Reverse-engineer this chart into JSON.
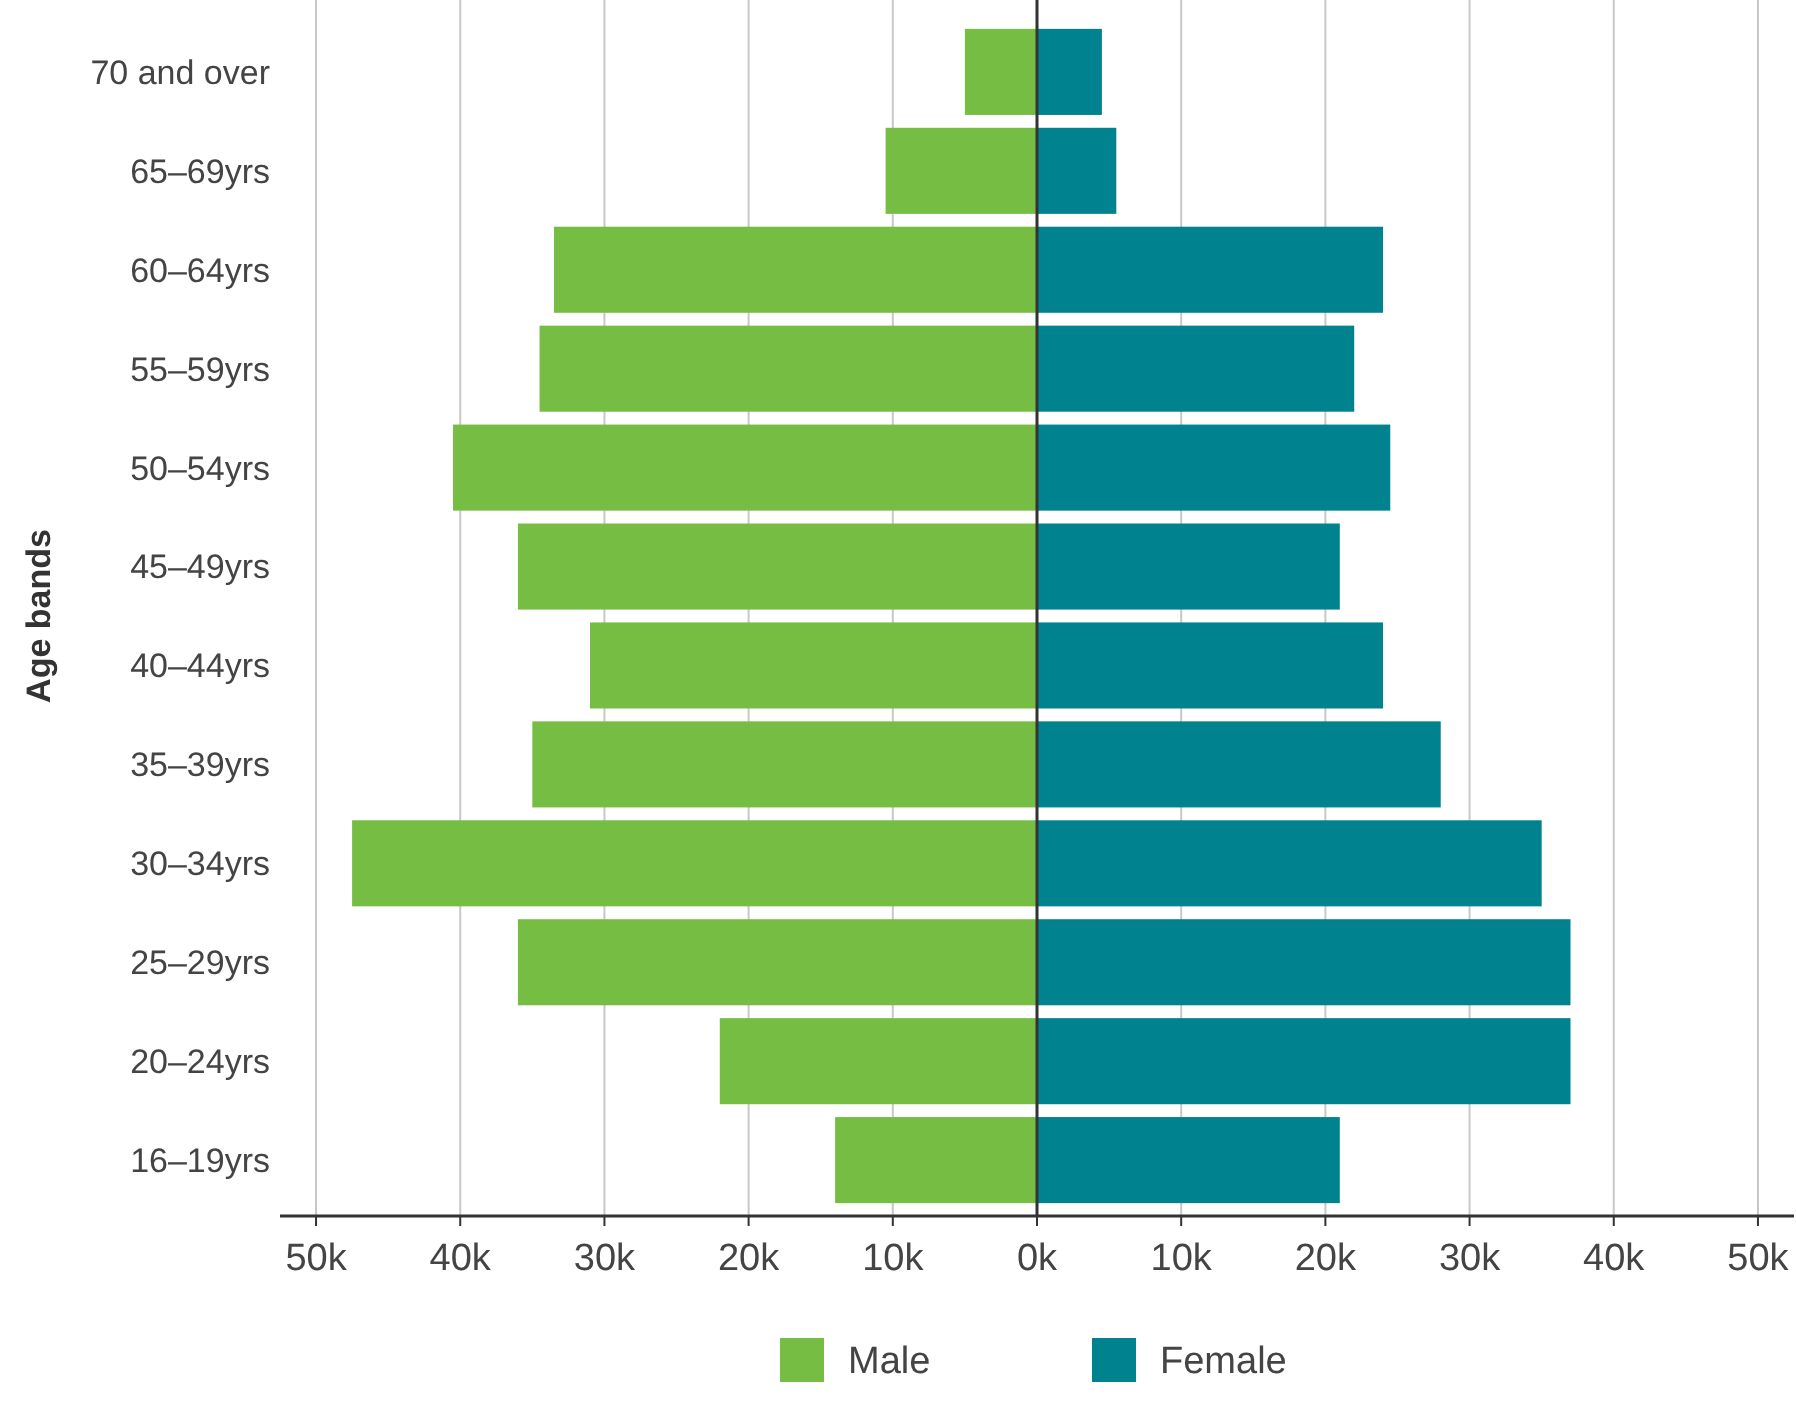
{
  "chart_data": {
    "type": "bar",
    "orientation": "horizontal",
    "stacked": true,
    "ylabel": "Age bands",
    "categories": [
      "70 and over",
      "65–69yrs",
      "60–64yrs",
      "55–59yrs",
      "50–54yrs",
      "45–49yrs",
      "40–44yrs",
      "35–39yrs",
      "30–34yrs",
      "25–29yrs",
      "20–24yrs",
      "16–19yrs"
    ],
    "series": [
      {
        "name": "Male",
        "color": "#76bd43",
        "values": [
          -5000,
          -10500,
          -33500,
          -34500,
          -40500,
          -36000,
          -31000,
          -35000,
          -47500,
          -36000,
          -22000,
          -14000
        ]
      },
      {
        "name": "Female",
        "color": "#00828f",
        "values": [
          4500,
          5500,
          24000,
          22000,
          24500,
          21000,
          24000,
          28000,
          35000,
          37000,
          37000,
          21000
        ]
      }
    ],
    "xlim": [
      -52500,
      52500
    ],
    "xticks": [
      {
        "value": -50000,
        "label": "50k"
      },
      {
        "value": -40000,
        "label": "40k"
      },
      {
        "value": -30000,
        "label": "30k"
      },
      {
        "value": -20000,
        "label": "20k"
      },
      {
        "value": -10000,
        "label": "10k"
      },
      {
        "value": 0,
        "label": "0k"
      },
      {
        "value": 10000,
        "label": "10k"
      },
      {
        "value": 20000,
        "label": "20k"
      },
      {
        "value": 30000,
        "label": "30k"
      },
      {
        "value": 40000,
        "label": "40k"
      },
      {
        "value": 50000,
        "label": "50k"
      }
    ],
    "grid": "x",
    "legend": "bottom"
  }
}
